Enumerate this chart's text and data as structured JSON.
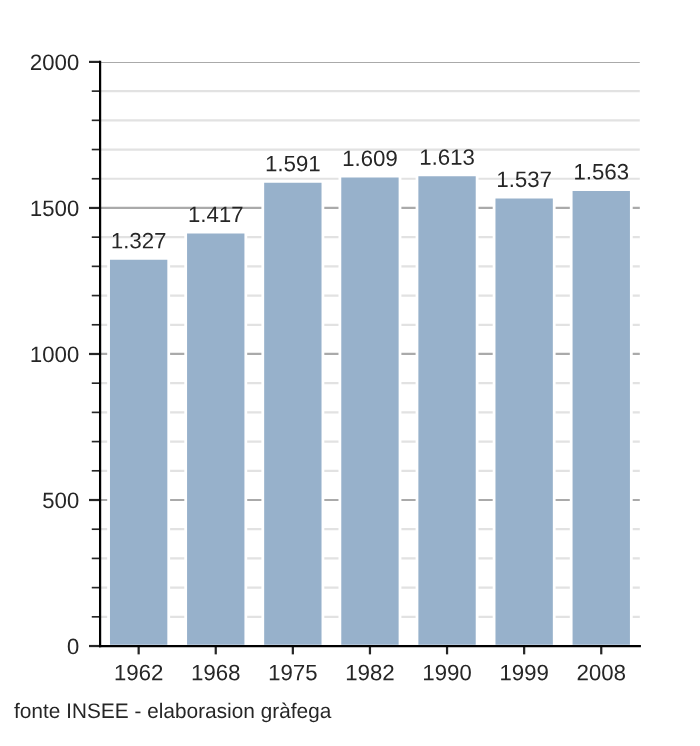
{
  "chart_data": {
    "type": "bar",
    "categories": [
      "1962",
      "1968",
      "1975",
      "1982",
      "1990",
      "1999",
      "2008"
    ],
    "values": [
      1327,
      1417,
      1591,
      1609,
      1613,
      1537,
      1563
    ],
    "value_labels": [
      "1.327",
      "1.417",
      "1.591",
      "1.609",
      "1.613",
      "1.537",
      "1.563"
    ],
    "color": "#97b1cb",
    "ylim": [
      0,
      2000
    ],
    "yticks": [
      0,
      500,
      1000,
      1500,
      2000
    ],
    "grid": "y",
    "annotations": [
      "fonte INSEE - elaborasion gràfega"
    ]
  }
}
